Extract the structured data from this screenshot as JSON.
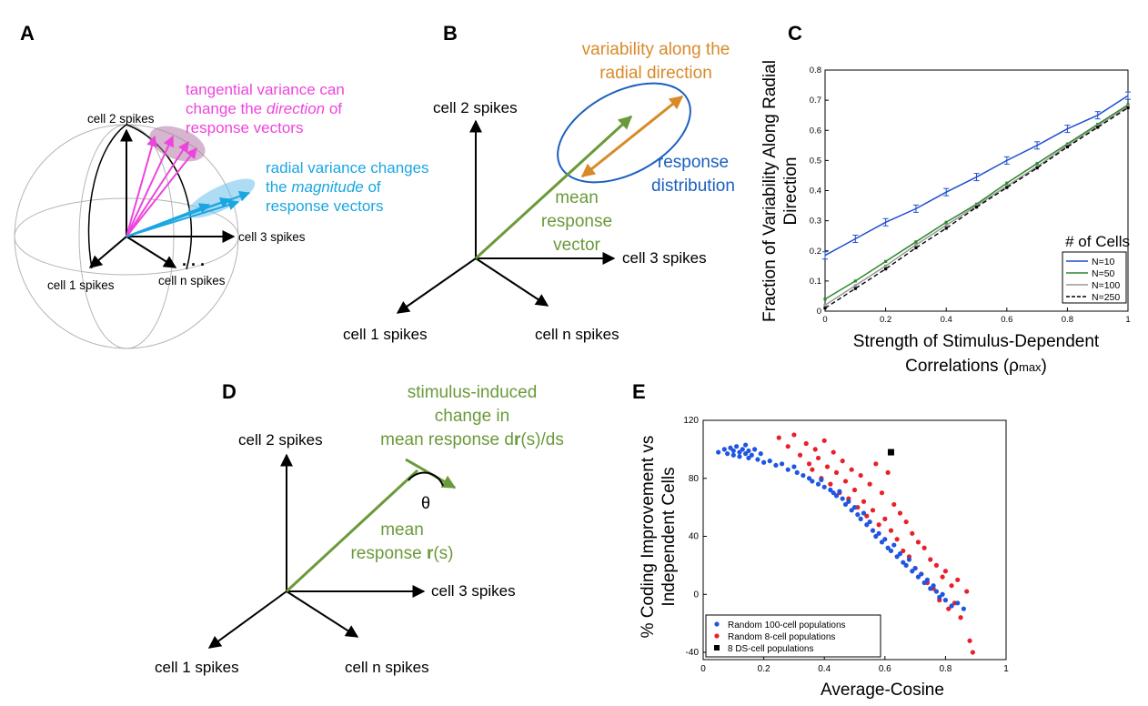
{
  "panels": {
    "a": {
      "label": "A",
      "axis_cell2": "cell 2 spikes",
      "axis_cell1": "cell 1 spikes",
      "axis_cell3": "cell 3 spikes",
      "axis_celln": "cell n spikes",
      "tangential_line1": "tangential variance can",
      "tangential_line2a": "change the ",
      "tangential_line2b": "direction",
      "tangential_line2c": " of",
      "tangential_line3": "response vectors",
      "radial_line1": "radial variance changes",
      "radial_line2a": "the ",
      "radial_line2b": "magnitude",
      "radial_line2c": " of",
      "radial_line3": "response vectors"
    },
    "b": {
      "label": "B",
      "axis_cell2": "cell 2 spikes",
      "axis_cell1": "cell 1 spikes",
      "axis_cell3": "cell 3 spikes",
      "axis_celln": "cell n spikes",
      "variability_line1": "variability along the",
      "variability_line2": "radial direction",
      "response_line1": "response",
      "response_line2": "distribution",
      "mean_line1": "mean",
      "mean_line2": "response",
      "mean_line3": "vector"
    },
    "c": {
      "label": "C",
      "ylabel_line1": "Fraction of Variability Along Radial",
      "ylabel_line2": "Direction",
      "xlabel_line1": "Strength of Stimulus-Dependent",
      "xlabel_line2a": "Correlations (",
      "xlabel_rho": "ρ",
      "xlabel_sub": "max",
      "xlabel_line2b": ")",
      "legend_title": "# of Cells"
    },
    "d": {
      "label": "D",
      "axis_cell2": "cell 2 spikes",
      "axis_cell1": "cell 1 spikes",
      "axis_cell3": "cell 3 spikes",
      "axis_celln": "cell n spikes",
      "stim_line1": "stimulus-induced",
      "stim_line2": "change in",
      "stim_line3a": "mean response d",
      "stim_line3b": "r",
      "stim_line3c": "(s)/ds",
      "theta": "θ",
      "mean_line1": "mean",
      "mean_line2a": "response ",
      "mean_line2b": "r",
      "mean_line2c": "(s)"
    },
    "e": {
      "label": "E",
      "ylabel_line1": "% Coding Improvement vs",
      "ylabel_line2": "Independent Cells",
      "xlabel": "Average-Cosine"
    }
  },
  "colors": {
    "magenta": "#ee44dd",
    "cyan": "#1aa6e0",
    "green": "#6a9a3a",
    "orange": "#d88a28",
    "blue": "#1a5fbf",
    "plot_blue": "#1f4fd0",
    "plot_green": "#2a8a2a",
    "plot_gray": "#999999",
    "red": "#e8202a",
    "scatter_blue": "#1f55e0"
  },
  "chart_data": [
    {
      "id": "C",
      "type": "line",
      "xlabel": "Strength of Stimulus-Dependent Correlations (ρmax)",
      "ylabel": "Fraction of Variability Along Radial Direction",
      "xlim": [
        0,
        1
      ],
      "ylim": [
        0,
        0.8
      ],
      "xticks": [
        0,
        0.2,
        0.4,
        0.6,
        0.8,
        1
      ],
      "xtick_labels": [
        "0",
        "0.2",
        "0.4",
        "0.6",
        "0.8",
        "1"
      ],
      "yticks": [
        0,
        0.1,
        0.2,
        0.3,
        0.4,
        0.5,
        0.6,
        0.7,
        0.8
      ],
      "ytick_labels": [
        "0",
        "0.1",
        "0.2",
        "0.3",
        "0.4",
        "0.5",
        "0.6",
        "0.7",
        "0.8"
      ],
      "legend_title": "# of Cells",
      "legend_position": "lower-right",
      "x": [
        0,
        0.1,
        0.2,
        0.3,
        0.4,
        0.5,
        0.6,
        0.7,
        0.8,
        0.9,
        1.0
      ],
      "series": [
        {
          "name": "N=10",
          "color": "#1f4fd0",
          "style": "solid",
          "errorbars": true,
          "values": [
            0.185,
            0.24,
            0.295,
            0.34,
            0.395,
            0.445,
            0.5,
            0.55,
            0.605,
            0.65,
            0.715
          ]
        },
        {
          "name": "N=50",
          "color": "#2a8a2a",
          "style": "solid",
          "errorbars": false,
          "values": [
            0.04,
            0.1,
            0.165,
            0.23,
            0.295,
            0.355,
            0.425,
            0.49,
            0.555,
            0.62,
            0.685
          ]
        },
        {
          "name": "N=100",
          "color": "#999999",
          "style": "solid",
          "errorbars": false,
          "values": [
            0.02,
            0.085,
            0.15,
            0.22,
            0.285,
            0.35,
            0.415,
            0.48,
            0.55,
            0.615,
            0.68
          ]
        },
        {
          "name": "N=250",
          "color": "#000000",
          "style": "dashed",
          "errorbars": false,
          "values": [
            0.01,
            0.075,
            0.14,
            0.21,
            0.275,
            0.345,
            0.41,
            0.475,
            0.545,
            0.61,
            0.675
          ]
        }
      ]
    },
    {
      "id": "E",
      "type": "scatter",
      "xlabel": "Average-Cosine",
      "ylabel": "% Coding Improvement vs Independent Cells",
      "xlim": [
        0,
        1
      ],
      "ylim": [
        -45,
        120
      ],
      "xticks": [
        0,
        0.2,
        0.4,
        0.6,
        0.8,
        1
      ],
      "xtick_labels": [
        "0",
        "0.2",
        "0.4",
        "0.6",
        "0.8",
        "1"
      ],
      "yticks": [
        -40,
        0,
        40,
        80,
        120
      ],
      "ytick_labels": [
        "-40",
        "0",
        "40",
        "80",
        "120"
      ],
      "legend_position": "lower-left",
      "series": [
        {
          "name": "Random 100-cell populations",
          "color": "#1f55e0",
          "marker": "circle",
          "points": [
            [
              0.05,
              98
            ],
            [
              0.07,
              100
            ],
            [
              0.08,
              97
            ],
            [
              0.09,
              101
            ],
            [
              0.1,
              99
            ],
            [
              0.1,
              96
            ],
            [
              0.11,
              102
            ],
            [
              0.12,
              98
            ],
            [
              0.12,
              95
            ],
            [
              0.13,
              100
            ],
            [
              0.14,
              97
            ],
            [
              0.14,
              103
            ],
            [
              0.15,
              99
            ],
            [
              0.15,
              94
            ],
            [
              0.16,
              96
            ],
            [
              0.17,
              100
            ],
            [
              0.18,
              93
            ],
            [
              0.19,
              97
            ],
            [
              0.2,
              91
            ],
            [
              0.22,
              92
            ],
            [
              0.24,
              89
            ],
            [
              0.26,
              90
            ],
            [
              0.28,
              86
            ],
            [
              0.3,
              88
            ],
            [
              0.31,
              84
            ],
            [
              0.33,
              82
            ],
            [
              0.35,
              80
            ],
            [
              0.36,
              78
            ],
            [
              0.38,
              76
            ],
            [
              0.39,
              79
            ],
            [
              0.4,
              74
            ],
            [
              0.42,
              72
            ],
            [
              0.43,
              70
            ],
            [
              0.44,
              68
            ],
            [
              0.45,
              71
            ],
            [
              0.46,
              66
            ],
            [
              0.47,
              62
            ],
            [
              0.48,
              64
            ],
            [
              0.49,
              58
            ],
            [
              0.5,
              60
            ],
            [
              0.51,
              55
            ],
            [
              0.52,
              52
            ],
            [
              0.53,
              56
            ],
            [
              0.54,
              48
            ],
            [
              0.55,
              50
            ],
            [
              0.56,
              44
            ],
            [
              0.57,
              40
            ],
            [
              0.58,
              42
            ],
            [
              0.59,
              36
            ],
            [
              0.6,
              38
            ],
            [
              0.61,
              32
            ],
            [
              0.62,
              30
            ],
            [
              0.63,
              34
            ],
            [
              0.64,
              26
            ],
            [
              0.65,
              28
            ],
            [
              0.66,
              22
            ],
            [
              0.67,
              20
            ],
            [
              0.68,
              24
            ],
            [
              0.69,
              16
            ],
            [
              0.7,
              18
            ],
            [
              0.71,
              12
            ],
            [
              0.72,
              14
            ],
            [
              0.73,
              8
            ],
            [
              0.74,
              10
            ],
            [
              0.75,
              4
            ],
            [
              0.76,
              6
            ],
            [
              0.77,
              2
            ],
            [
              0.78,
              -2
            ],
            [
              0.79,
              0
            ],
            [
              0.8,
              -4
            ],
            [
              0.82,
              -8
            ],
            [
              0.84,
              -6
            ],
            [
              0.86,
              -10
            ]
          ]
        },
        {
          "name": "Random 8-cell populations",
          "color": "#e8202a",
          "marker": "circle",
          "points": [
            [
              0.25,
              108
            ],
            [
              0.28,
              102
            ],
            [
              0.3,
              110
            ],
            [
              0.32,
              96
            ],
            [
              0.34,
              104
            ],
            [
              0.35,
              90
            ],
            [
              0.36,
              86
            ],
            [
              0.37,
              100
            ],
            [
              0.38,
              94
            ],
            [
              0.39,
              80
            ],
            [
              0.4,
              106
            ],
            [
              0.41,
              88
            ],
            [
              0.42,
              76
            ],
            [
              0.43,
              98
            ],
            [
              0.44,
              84
            ],
            [
              0.45,
              70
            ],
            [
              0.46,
              92
            ],
            [
              0.47,
              78
            ],
            [
              0.48,
              66
            ],
            [
              0.49,
              86
            ],
            [
              0.5,
              72
            ],
            [
              0.51,
              60
            ],
            [
              0.52,
              82
            ],
            [
              0.53,
              64
            ],
            [
              0.54,
              54
            ],
            [
              0.55,
              76
            ],
            [
              0.56,
              58
            ],
            [
              0.57,
              90
            ],
            [
              0.58,
              48
            ],
            [
              0.59,
              70
            ],
            [
              0.6,
              52
            ],
            [
              0.61,
              84
            ],
            [
              0.62,
              44
            ],
            [
              0.63,
              62
            ],
            [
              0.64,
              38
            ],
            [
              0.65,
              56
            ],
            [
              0.66,
              30
            ],
            [
              0.67,
              50
            ],
            [
              0.68,
              26
            ],
            [
              0.69,
              42
            ],
            [
              0.7,
              18
            ],
            [
              0.71,
              36
            ],
            [
              0.72,
              14
            ],
            [
              0.73,
              32
            ],
            [
              0.74,
              8
            ],
            [
              0.75,
              24
            ],
            [
              0.76,
              4
            ],
            [
              0.77,
              20
            ],
            [
              0.78,
              -4
            ],
            [
              0.79,
              12
            ],
            [
              0.8,
              16
            ],
            [
              0.81,
              -10
            ],
            [
              0.82,
              6
            ],
            [
              0.83,
              -6
            ],
            [
              0.84,
              10
            ],
            [
              0.85,
              -16
            ],
            [
              0.87,
              2
            ],
            [
              0.88,
              -32
            ],
            [
              0.89,
              -40
            ]
          ]
        },
        {
          "name": "8 DS-cell populations",
          "color": "#000000",
          "marker": "square",
          "points": [
            [
              0.62,
              98
            ]
          ]
        }
      ]
    }
  ]
}
